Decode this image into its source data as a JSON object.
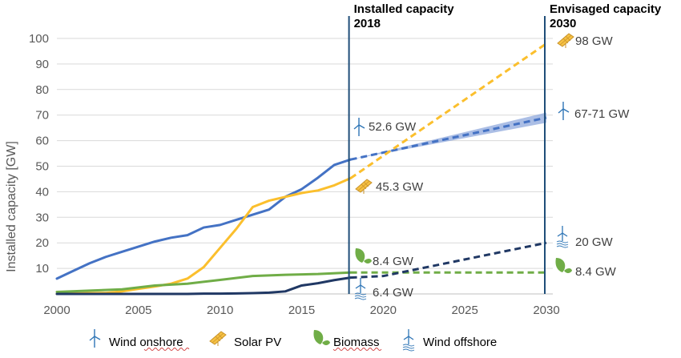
{
  "chart_data": {
    "type": "line",
    "ylabel": "Installed capacity [GW]",
    "xlabel": "",
    "xlim": [
      2000,
      2030
    ],
    "ylim": [
      0,
      100
    ],
    "xticks": [
      2000,
      2005,
      2010,
      2015,
      2020,
      2025,
      2030
    ],
    "yticks": [
      10,
      20,
      30,
      40,
      50,
      60,
      70,
      80,
      90,
      100
    ],
    "grid": "horizontal",
    "legend_position": "bottom",
    "colors": {
      "wind_onshore": "#4472c4",
      "solar_pv": "#fbbf2d",
      "biomass": "#70ad47",
      "wind_offshore": "#203864",
      "band": "#8fa8dc",
      "marker": "#1f4e79"
    },
    "markers": [
      {
        "x": 2018,
        "label": "Installed capacity\n2018"
      },
      {
        "x": 2030,
        "label": "Envisaged capacity\n2030"
      }
    ],
    "series": [
      {
        "name": "Wind onshore",
        "key": "wind_onshore",
        "x": [
          2000,
          2001,
          2002,
          2003,
          2004,
          2005,
          2006,
          2007,
          2008,
          2009,
          2010,
          2011,
          2012,
          2013,
          2014,
          2015,
          2016,
          2017,
          2018
        ],
        "y": [
          6,
          9,
          12,
          14.5,
          16.5,
          18.5,
          20.5,
          22,
          23,
          26,
          27,
          29,
          31,
          33,
          38,
          41,
          45.5,
          50.5,
          52.6
        ],
        "projection": {
          "x": [
            2018,
            2030
          ],
          "y": [
            52.6,
            69
          ]
        },
        "band": {
          "x": [
            2018,
            2030
          ],
          "low": [
            52.6,
            67
          ],
          "high": [
            52.6,
            71
          ]
        }
      },
      {
        "name": "Solar PV",
        "key": "solar_pv",
        "x": [
          2000,
          2001,
          2002,
          2003,
          2004,
          2005,
          2006,
          2007,
          2008,
          2009,
          2010,
          2011,
          2012,
          2013,
          2014,
          2015,
          2016,
          2017,
          2018
        ],
        "y": [
          0,
          0.2,
          0.3,
          0.4,
          1,
          2,
          2.9,
          4,
          6,
          10.5,
          18,
          25.5,
          34,
          36.5,
          38,
          39.5,
          40.5,
          42.5,
          45.3
        ],
        "projection": {
          "x": [
            2018,
            2030
          ],
          "y": [
            45.3,
            98
          ]
        }
      },
      {
        "name": "Biomass",
        "key": "biomass",
        "x": [
          2000,
          2002,
          2004,
          2006,
          2008,
          2010,
          2012,
          2014,
          2016,
          2018
        ],
        "y": [
          0.8,
          1.3,
          1.8,
          3.3,
          4,
          5.5,
          7,
          7.5,
          7.8,
          8.4
        ],
        "projection": {
          "x": [
            2018,
            2030
          ],
          "y": [
            8.4,
            8.4
          ]
        }
      },
      {
        "name": "Wind offshore",
        "key": "wind_offshore",
        "x": [
          2000,
          2008,
          2009,
          2010,
          2011,
          2012,
          2013,
          2014,
          2015,
          2016,
          2017,
          2018
        ],
        "y": [
          0,
          0,
          0.1,
          0.1,
          0.2,
          0.3,
          0.5,
          1,
          3.3,
          4.2,
          5.4,
          6.4
        ],
        "projection": {
          "x": [
            2018,
            2020,
            2030
          ],
          "y": [
            6.4,
            7,
            20
          ]
        }
      }
    ],
    "annotations": [
      {
        "text": "52.6 GW",
        "x": 2018,
        "y": 52.6,
        "icon": "wind-turbine-icon"
      },
      {
        "text": "45.3 GW",
        "x": 2018,
        "y": 45.3,
        "icon": "solar-panel-icon"
      },
      {
        "text": "8.4 GW",
        "x": 2018,
        "y": 8.4,
        "icon": "leaf-icon"
      },
      {
        "text": "6.4 GW",
        "x": 2018,
        "y": 6.4,
        "icon": "offshore-wind-icon"
      },
      {
        "text": "98 GW",
        "x": 2030,
        "y": 98,
        "icon": "solar-panel-icon"
      },
      {
        "text": "67-71 GW",
        "x": 2030,
        "y": 69,
        "icon": "wind-turbine-icon"
      },
      {
        "text": "20 GW",
        "x": 2030,
        "y": 20,
        "icon": "offshore-wind-icon"
      },
      {
        "text": "8.4 GW",
        "x": 2030,
        "y": 8.4,
        "icon": "leaf-icon"
      }
    ]
  },
  "legend": [
    {
      "label": "Wind onshore",
      "icon": "wind-turbine-icon"
    },
    {
      "label": "Solar PV",
      "icon": "solar-panel-icon"
    },
    {
      "label": "Biomass",
      "icon": "leaf-icon"
    },
    {
      "label": "Wind offshore",
      "icon": "offshore-wind-icon"
    }
  ]
}
